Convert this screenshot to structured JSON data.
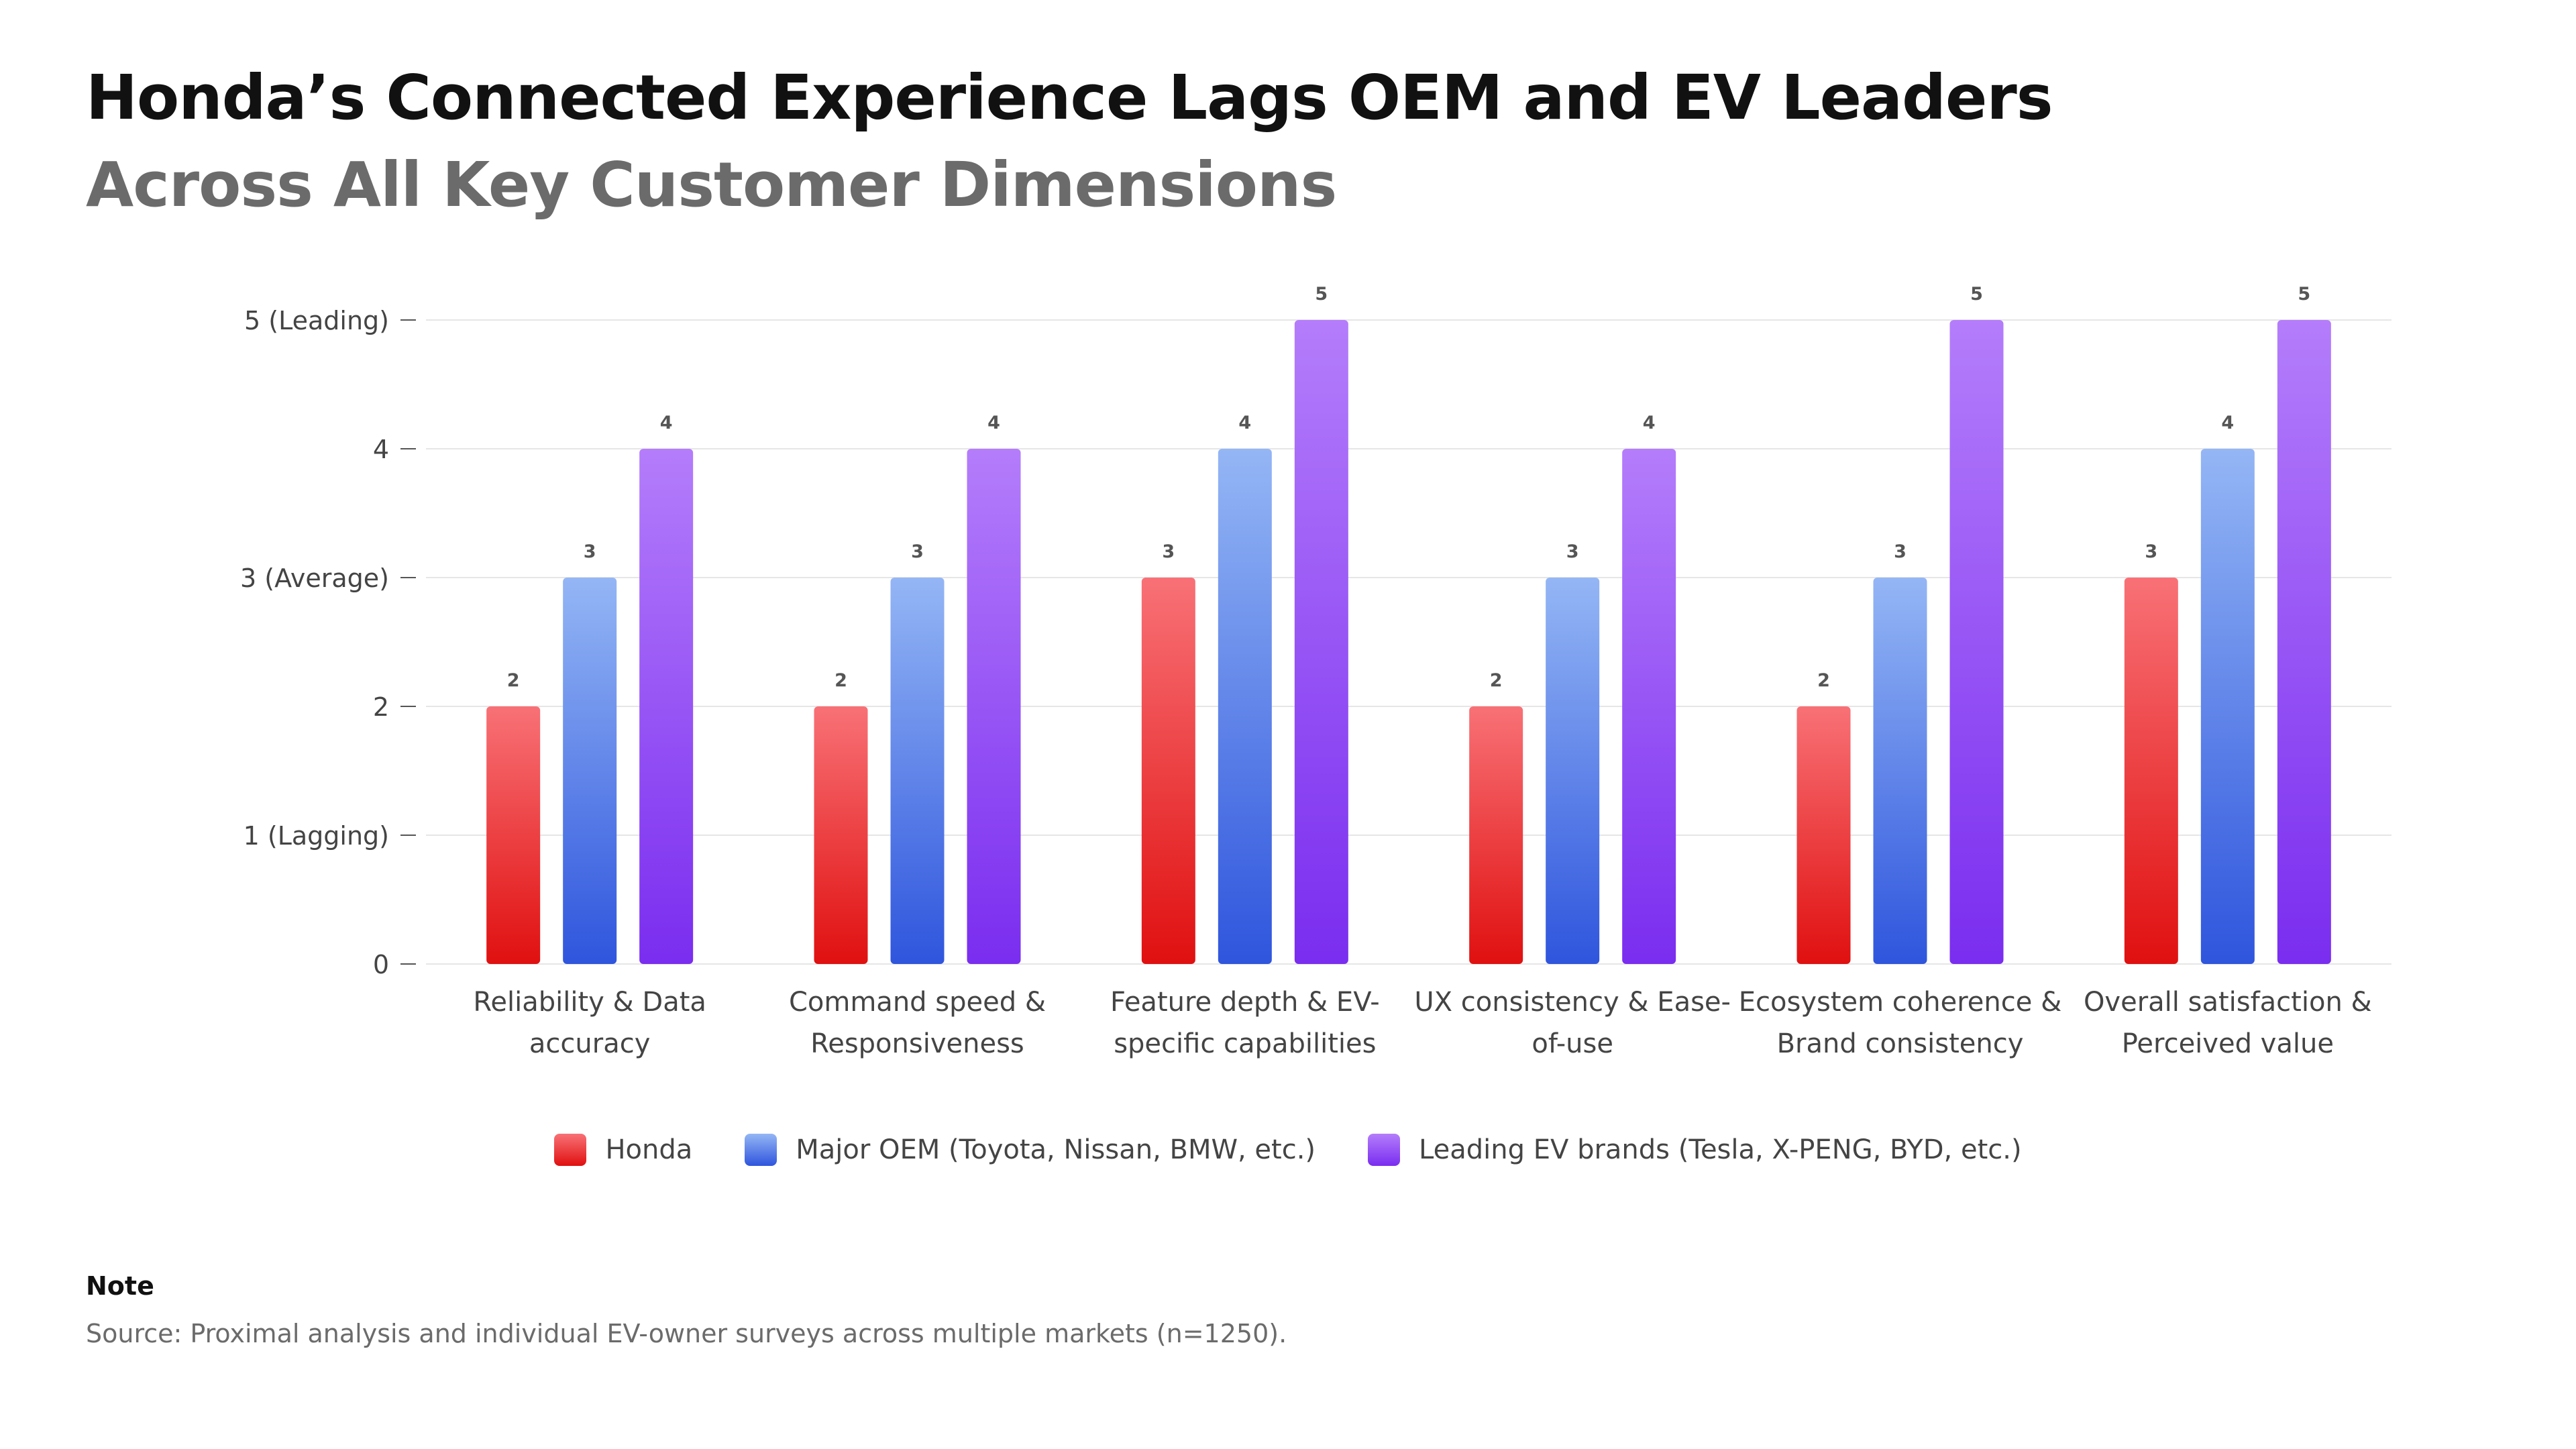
{
  "header": {
    "title": "Honda’s Connected Experience Lags OEM and EV Leaders",
    "subtitle": "Across All Key Customer Dimensions"
  },
  "colors": {
    "honda_top": "#f87176",
    "honda_bottom": "#e01010",
    "oem_top": "#94b6f5",
    "oem_bottom": "#2f55dd",
    "ev_top": "#b47dfb",
    "ev_bottom": "#7a2def",
    "grid": "#e6e6e6",
    "axis_text": "#444444"
  },
  "chart_data": {
    "type": "bar",
    "title": "Honda’s Connected Experience Lags OEM and EV Leaders",
    "subtitle": "Across All Key Customer Dimensions",
    "xlabel": "",
    "ylabel": "",
    "ylim": [
      0,
      5
    ],
    "grid": true,
    "legend_position": "bottom",
    "yticks": [
      {
        "value": 0,
        "label": "0"
      },
      {
        "value": 1,
        "label": "1 (Lagging)"
      },
      {
        "value": 2,
        "label": "2"
      },
      {
        "value": 3,
        "label": "3 (Average)"
      },
      {
        "value": 4,
        "label": "4"
      },
      {
        "value": 5,
        "label": "5 (Leading)"
      }
    ],
    "categories": [
      [
        "Reliability & Data",
        "accuracy"
      ],
      [
        "Command speed &",
        "Responsiveness"
      ],
      [
        "Feature depth & EV-",
        "specific capabilities"
      ],
      [
        "UX consistency & Ease-",
        "of-use"
      ],
      [
        "Ecosystem coherence &",
        "Brand consistency"
      ],
      [
        "Overall satisfaction &",
        "Perceived value"
      ]
    ],
    "series": [
      {
        "name": "Honda",
        "key": "honda",
        "values": [
          2,
          2,
          3,
          2,
          2,
          3
        ]
      },
      {
        "name": "Major OEM (Toyota, Nissan, BMW, etc.)",
        "key": "oem",
        "values": [
          3,
          3,
          4,
          3,
          3,
          4
        ]
      },
      {
        "name": "Leading EV brands (Tesla, X-PENG, BYD, etc.)",
        "key": "ev",
        "values": [
          4,
          4,
          5,
          4,
          5,
          5
        ]
      }
    ]
  },
  "legend": [
    {
      "label": "Honda"
    },
    {
      "label": "Major OEM (Toyota, Nissan, BMW, etc.)"
    },
    {
      "label": "Leading EV brands (Tesla, X-PENG, BYD, etc.)"
    }
  ],
  "note": {
    "heading": "Note",
    "text": "Source: Proximal analysis and individual EV-owner surveys across multiple markets (n=1250)."
  }
}
